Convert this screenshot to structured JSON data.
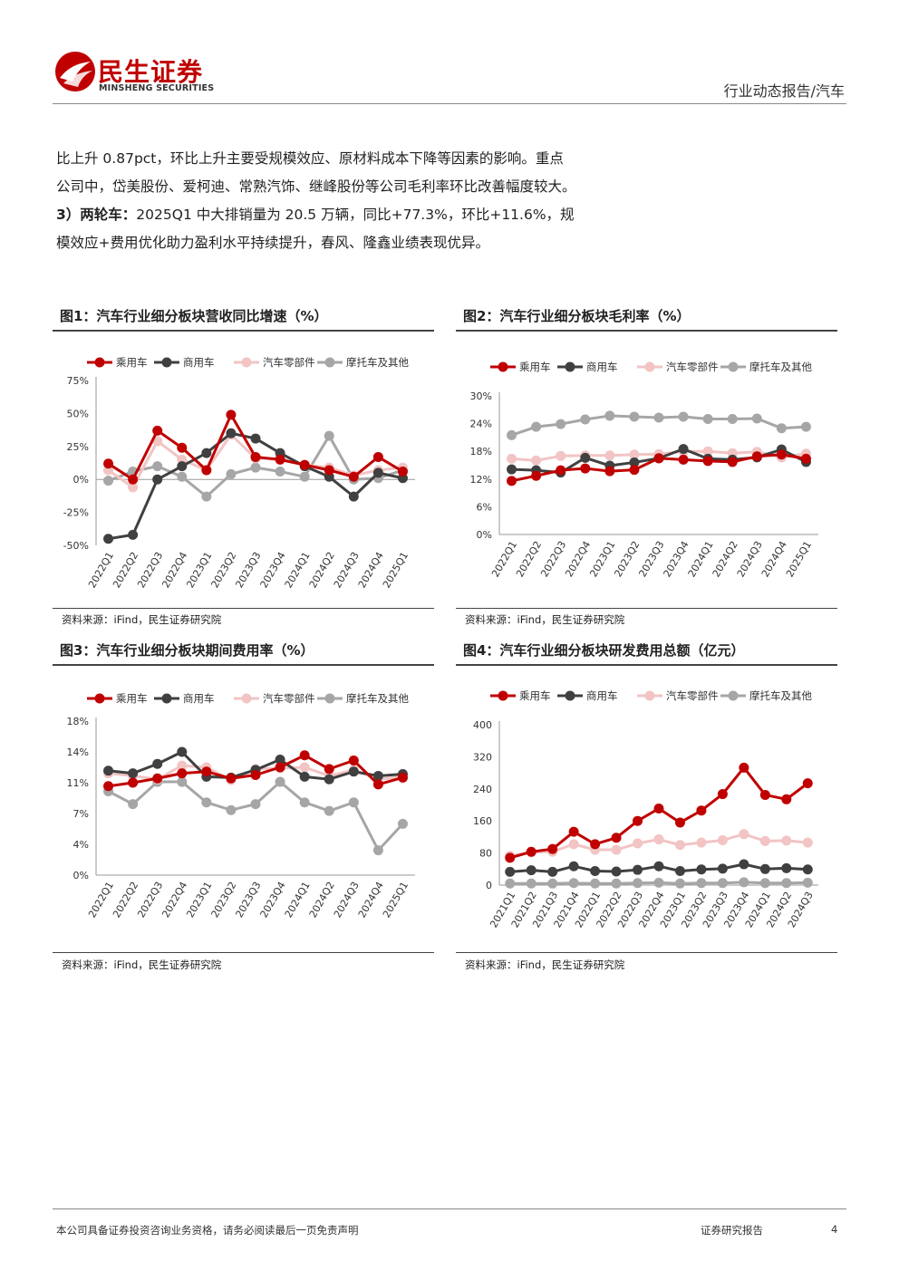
{
  "header": {
    "brand_cn": "民生证券",
    "brand_en": "MINSHENG SECURITIES",
    "tag": "行业动态报告/汽车"
  },
  "body": {
    "lines": [
      "比上升 0.87pct，环比上升主要受规模效应、原材料成本下降等因素的影响。重点",
      "公司中，岱美股份、爱柯迪、常熟汽饰、继峰股份等公司毛利率环比改善幅度较大。",
      "3）两轮车：2025Q1 中大排销量为 20.5 万辆，同比+77.3%，环比+11.6%，规",
      "模效应+费用优化助力盈利水平持续提升，春风、隆鑫业绩表现优异。"
    ],
    "bold_prefix": "3）两轮车：",
    "line3_rest": "2025Q1 中大排销量为 20.5 万辆，同比+77.3%，环比+11.6%，规"
  },
  "figures": {
    "fig1": {
      "title": "图1：汽车行业细分板块营收同比增速（%）",
      "source": "资料来源：iFind，民生证券研究院"
    },
    "fig2": {
      "title": "图2：汽车行业细分板块毛利率（%）",
      "source": "资料来源：iFind，民生证券研究院"
    },
    "fig3": {
      "title": "图3：汽车行业细分板块期间费用率（%）",
      "source": "资料来源：iFind，民生证券研究院"
    },
    "fig4": {
      "title": "图4：汽车行业细分板块研发费用总额（亿元）",
      "source": "资料来源：iFind，民生证券研究院"
    }
  },
  "footer": {
    "disclaimer": "本公司具备证券投资咨询业务资格，请务必阅读最后一页免责声明",
    "report_type": "证券研究报告",
    "page": "4"
  },
  "colors": {
    "passenger": "#c00000",
    "commercial": "#404040",
    "parts": "#f2c4c4",
    "moto": "#a6a6a6",
    "brand": "#c00000"
  },
  "chart_data": [
    {
      "id": "fig1",
      "type": "line",
      "title": "",
      "categories": [
        "2022Q1",
        "2022Q2",
        "2022Q3",
        "2022Q4",
        "2023Q1",
        "2023Q2",
        "2023Q3",
        "2023Q4",
        "2024Q1",
        "2024Q2",
        "2024Q3",
        "2024Q4",
        "2025Q1"
      ],
      "yticks": [
        "75%",
        "50%",
        "25%",
        "0%",
        "-25%",
        "-50%"
      ],
      "ylim": [
        -50,
        75
      ],
      "legend": "top",
      "grid": false,
      "series": [
        {
          "name": "乘用车",
          "color_key": "passenger",
          "values": [
            12,
            0,
            37,
            24,
            7,
            49,
            17,
            15,
            11,
            7,
            2,
            17,
            6
          ]
        },
        {
          "name": "商用车",
          "color_key": "commercial",
          "values": [
            -45,
            -42,
            0,
            10,
            20,
            35,
            31,
            20,
            10,
            2,
            -13,
            5,
            1
          ]
        },
        {
          "name": "汽车零部件",
          "color_key": "parts",
          "values": [
            7,
            -6,
            29,
            15,
            7,
            34,
            16,
            16,
            11,
            9,
            3,
            7,
            9
          ]
        },
        {
          "name": "摩托车及其他",
          "color_key": "moto",
          "values": [
            -1,
            6,
            10,
            2,
            -13,
            4,
            9,
            6,
            2,
            33,
            0,
            1,
            7
          ]
        }
      ]
    },
    {
      "id": "fig2",
      "type": "line",
      "title": "",
      "categories": [
        "2022Q1",
        "2022Q2",
        "2022Q3",
        "2022Q4",
        "2023Q1",
        "2023Q2",
        "2023Q3",
        "2023Q4",
        "2024Q1",
        "2024Q2",
        "2024Q3",
        "2024Q4",
        "2025Q1"
      ],
      "yticks": [
        "30%",
        "24%",
        "18%",
        "12%",
        "6%",
        "0%"
      ],
      "ylim": [
        0,
        30
      ],
      "legend": "top",
      "grid": false,
      "series": [
        {
          "name": "乘用车",
          "color_key": "passenger",
          "values": [
            11.6,
            12.7,
            13.9,
            14.3,
            13.7,
            14.0,
            16.5,
            16.2,
            15.9,
            15.7,
            16.9,
            17.3,
            16.4
          ]
        },
        {
          "name": "商用车",
          "color_key": "commercial",
          "values": [
            14.1,
            13.9,
            13.4,
            16.6,
            14.9,
            15.6,
            16.5,
            18.5,
            16.4,
            16.2,
            16.7,
            18.4,
            15.7
          ]
        },
        {
          "name": "汽车零部件",
          "color_key": "parts",
          "values": [
            16.4,
            16.0,
            17.0,
            17.1,
            17.1,
            17.3,
            17.4,
            18.0,
            18.0,
            17.6,
            17.9,
            16.7,
            17.5
          ]
        },
        {
          "name": "摩托车及其他",
          "color_key": "moto",
          "values": [
            21.5,
            23.3,
            23.9,
            24.9,
            25.7,
            25.5,
            25.3,
            25.5,
            25.0,
            25.0,
            25.1,
            23.0,
            23.3
          ]
        }
      ]
    },
    {
      "id": "fig3",
      "type": "line",
      "title": "",
      "categories": [
        "2022Q1",
        "2022Q2",
        "2022Q3",
        "2022Q4",
        "2023Q1",
        "2023Q2",
        "2023Q3",
        "2023Q4",
        "2024Q1",
        "2024Q2",
        "2024Q3",
        "2024Q4",
        "2025Q1"
      ],
      "yticks": [
        "18%",
        "14%",
        "11%",
        "7%",
        "4%",
        "0%"
      ],
      "yticks_values": [
        18,
        14.4,
        10.8,
        7.2,
        3.6,
        0
      ],
      "ylim": [
        0,
        18
      ],
      "legend": "top",
      "grid": false,
      "series": [
        {
          "name": "乘用车",
          "color_key": "passenger",
          "values": [
            10.4,
            10.8,
            11.3,
            11.9,
            12.1,
            11.3,
            11.7,
            12.6,
            14.0,
            12.4,
            13.4,
            10.6,
            11.4
          ]
        },
        {
          "name": "商用车",
          "color_key": "commercial",
          "values": [
            12.2,
            11.9,
            13.0,
            14.4,
            11.5,
            11.4,
            12.3,
            13.5,
            11.5,
            11.2,
            12.1,
            11.6,
            11.8
          ]
        },
        {
          "name": "汽车零部件",
          "color_key": "parts",
          "values": [
            11.9,
            11.6,
            11.2,
            12.8,
            12.6,
            11.1,
            12.4,
            12.5,
            12.6,
            11.6,
            12.3,
            11.2,
            11.5
          ]
        },
        {
          "name": "摩托车及其他",
          "color_key": "moto",
          "values": [
            9.8,
            8.3,
            10.9,
            10.9,
            8.5,
            7.6,
            8.3,
            10.9,
            8.5,
            7.5,
            8.5,
            2.9,
            6.0
          ]
        }
      ]
    },
    {
      "id": "fig4",
      "type": "line",
      "title": "",
      "categories": [
        "2021Q1",
        "2021Q2",
        "2021Q3",
        "2021Q4",
        "2022Q1",
        "2022Q2",
        "2022Q3",
        "2022Q4",
        "2023Q1",
        "2023Q2",
        "2023Q3",
        "2023Q4",
        "2024Q1",
        "2024Q2",
        "2024Q3"
      ],
      "yticks": [
        "400",
        "320",
        "240",
        "160",
        "80",
        "0"
      ],
      "ylim": [
        0,
        400
      ],
      "legend": "top",
      "grid": false,
      "series": [
        {
          "name": "乘用车",
          "color_key": "passenger",
          "values": [
            68,
            83,
            90,
            133,
            102,
            118,
            160,
            191,
            156,
            186,
            227,
            293,
            225,
            214,
            254
          ]
        },
        {
          "name": "商用车",
          "color_key": "commercial",
          "values": [
            33,
            37,
            33,
            47,
            35,
            34,
            38,
            47,
            35,
            39,
            41,
            52,
            40,
            42,
            39
          ]
        },
        {
          "name": "汽车零部件",
          "color_key": "parts",
          "values": [
            73,
            82,
            83,
            102,
            88,
            88,
            104,
            114,
            100,
            106,
            112,
            127,
            110,
            111,
            106
          ]
        },
        {
          "name": "摩托车及其他",
          "color_key": "moto",
          "values": [
            4,
            4,
            4,
            5,
            4,
            4,
            5,
            6,
            4,
            5,
            5,
            7,
            5,
            5,
            6
          ]
        }
      ]
    }
  ]
}
